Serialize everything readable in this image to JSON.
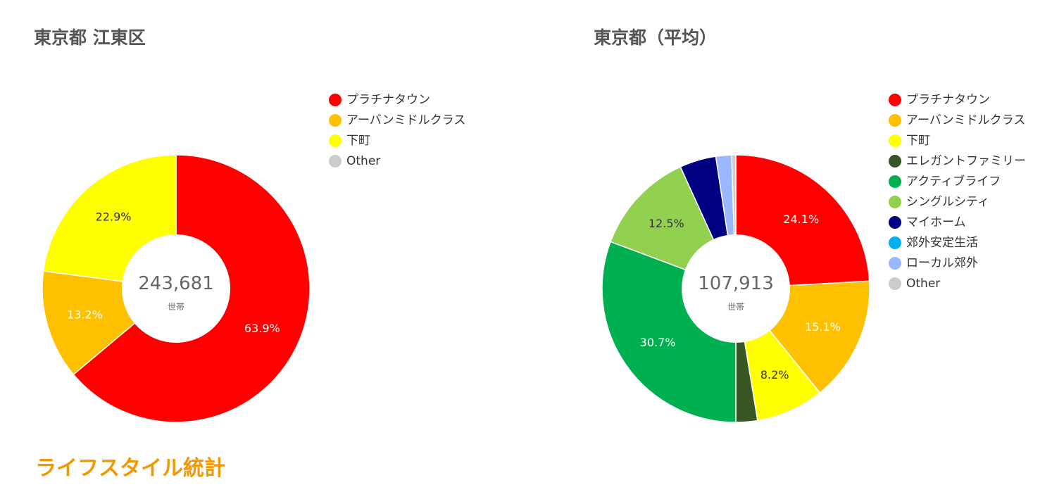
{
  "chart_data": [
    {
      "type": "pie",
      "title": "東京都 江東区",
      "center_value": "243,681",
      "center_unit": "世帯",
      "legend_position": "right",
      "categories": [
        "プラチナタウン",
        "アーバンミドルクラス",
        "下町",
        "Other"
      ],
      "colors": [
        "#ff0000",
        "#ffc000",
        "#ffff00",
        "#cccccc"
      ],
      "values": [
        63.9,
        13.2,
        22.9,
        0
      ],
      "labels": [
        "63.9%",
        "13.2%",
        "22.9%",
        ""
      ],
      "label_colors": [
        "#ffffff",
        "#ffffff",
        "#333333",
        "#333333"
      ],
      "slices": [
        {
          "name": "プラチナタウン",
          "value": 63.9,
          "label": "63.9%"
        },
        {
          "name": "アーバンミドルクラス",
          "value": 13.2,
          "label": "13.2%"
        },
        {
          "name": "下町",
          "value": 22.9,
          "label": "22.9%"
        }
      ]
    },
    {
      "type": "pie",
      "title": "東京都（平均）",
      "center_value": "107,913",
      "center_unit": "世帯",
      "legend_position": "right",
      "categories": [
        "プラチナタウン",
        "アーバンミドルクラス",
        "下町",
        "エレガントファミリー",
        "アクティブライフ",
        "シングルシティ",
        "マイホーム",
        "郊外安定生活",
        "ローカル郊外",
        "Other"
      ],
      "colors": [
        "#ff0000",
        "#ffc000",
        "#ffff00",
        "#375623",
        "#00b050",
        "#92d050",
        "#000080",
        "#00b0f0",
        "#9ab8ff",
        "#cccccc"
      ],
      "values": [
        24.1,
        15.1,
        8.2,
        2.6,
        30.7,
        12.5,
        4.4,
        0,
        1.9,
        0.5
      ],
      "labels": [
        "24.1%",
        "15.1%",
        "8.2%",
        "",
        "30.7%",
        "12.5%",
        "",
        "",
        "",
        ""
      ],
      "label_colors": [
        "#ffffff",
        "#ffffff",
        "#333333",
        "#ffffff",
        "#ffffff",
        "#333333",
        "#ffffff",
        "#ffffff",
        "#333333",
        "#333333"
      ]
    }
  ],
  "section": {
    "heading": "ライフスタイル統計"
  }
}
